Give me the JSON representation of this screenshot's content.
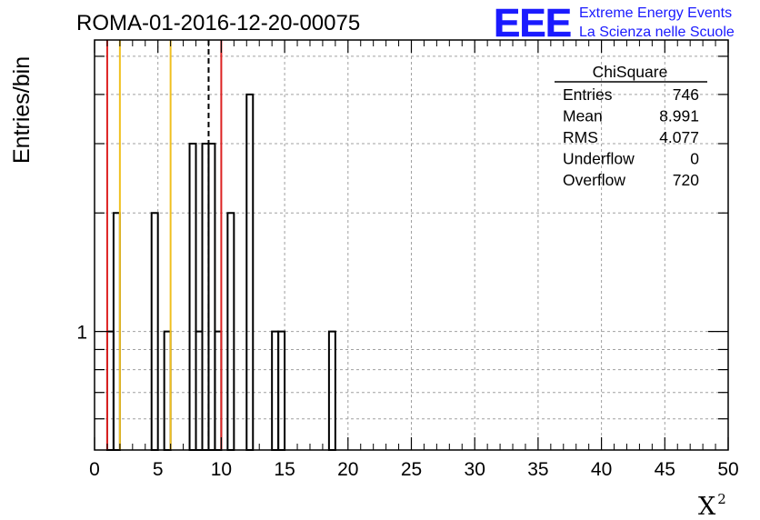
{
  "header": {
    "run_title": "ROMA-01-2016-12-20-00075",
    "logo_text": "EEE",
    "logo_line1": "Extreme Energy Events",
    "logo_line2": "La Scienza nelle Scuole"
  },
  "stats_box": {
    "title": "ChiSquare",
    "rows": [
      {
        "label": "Entries",
        "value": "746"
      },
      {
        "label": "Mean",
        "value": "8.991"
      },
      {
        "label": "RMS",
        "value": "4.077"
      },
      {
        "label": "Underflow",
        "value": "0"
      },
      {
        "label": "Overflow",
        "value": "720"
      }
    ]
  },
  "chart_data": {
    "type": "histogram",
    "ylabel": "Entries/bin",
    "xlabel": "X",
    "xlabel_superscript": "2",
    "xlim": [
      0,
      50
    ],
    "ylim": [
      0.5,
      5.5
    ],
    "yscale": "log",
    "grid": true,
    "x_ticks": [
      "0",
      "5",
      "10",
      "15",
      "20",
      "25",
      "30",
      "35",
      "40",
      "45",
      "50"
    ],
    "y_tick_labels": [
      {
        "value": 1,
        "label": "1"
      }
    ],
    "bin_width": 0.5,
    "bins": [
      {
        "x": 1.0,
        "count": 1
      },
      {
        "x": 1.5,
        "count": 2
      },
      {
        "x": 4.5,
        "count": 2
      },
      {
        "x": 5.5,
        "count": 1
      },
      {
        "x": 7.5,
        "count": 3
      },
      {
        "x": 8.0,
        "count": 1
      },
      {
        "x": 8.5,
        "count": 3
      },
      {
        "x": 9.0,
        "count": 3
      },
      {
        "x": 9.5,
        "count": 1
      },
      {
        "x": 10.5,
        "count": 2
      },
      {
        "x": 12.0,
        "count": 4
      },
      {
        "x": 14.0,
        "count": 1
      },
      {
        "x": 14.5,
        "count": 1
      },
      {
        "x": 18.5,
        "count": 1
      }
    ],
    "reference_lines": [
      {
        "x": 1.0,
        "color": "#dd2222",
        "style": "solid"
      },
      {
        "x": 2.0,
        "color": "#f0c020",
        "style": "solid"
      },
      {
        "x": 6.0,
        "color": "#f0c020",
        "style": "solid"
      },
      {
        "x": 9.0,
        "color": "#000000",
        "style": "dashed"
      },
      {
        "x": 10.0,
        "color": "#dd2222",
        "style": "solid"
      }
    ],
    "colors": {
      "logo": "#1a1aff",
      "line": "#000000",
      "grid": "#a0a0a0"
    }
  }
}
